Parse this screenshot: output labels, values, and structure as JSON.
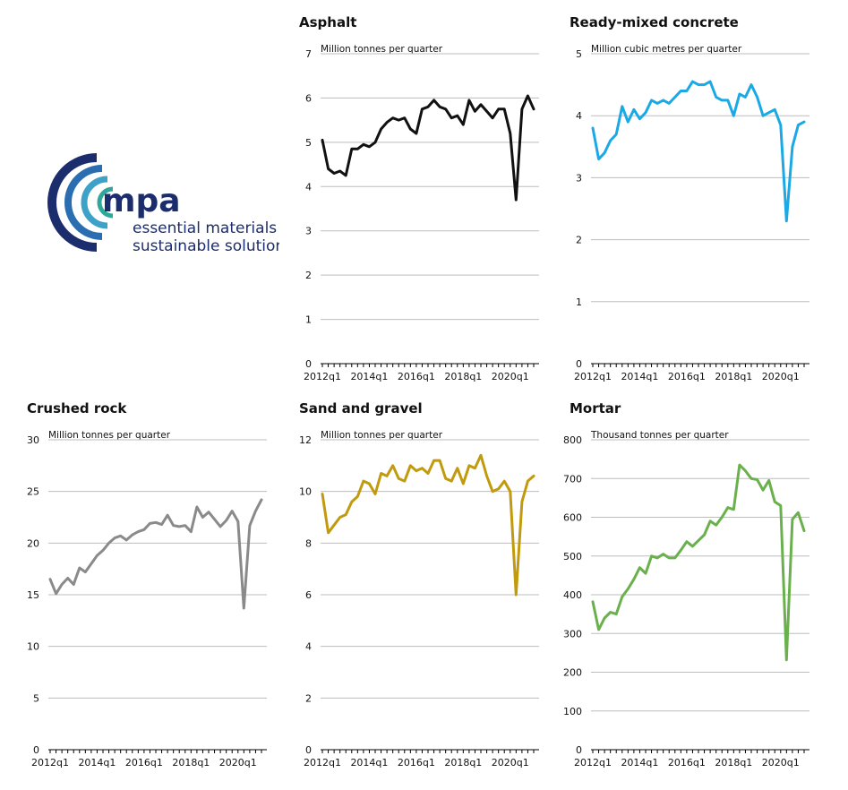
{
  "logo": {
    "brand": "mpa",
    "line1": "essential materials",
    "line2": "sustainable solutions",
    "colors": [
      "#1c2d6e",
      "#2a6db0",
      "#3ea2c8",
      "#2fa79a"
    ]
  },
  "chart_data": [
    {
      "type": "line",
      "title": "Asphalt",
      "ylabel": "Million tonnes per quarter",
      "ylim": [
        0,
        7
      ],
      "yticks": [
        0,
        1,
        2,
        3,
        4,
        5,
        6,
        7
      ],
      "xtick_labels": [
        "2012q1",
        "2014q1",
        "2016q1",
        "2018q1",
        "2020q1"
      ],
      "color": "#111111",
      "series": [
        {
          "values": [
            5.05,
            4.4,
            4.3,
            4.35,
            4.25,
            4.85,
            4.85,
            4.95,
            4.9,
            5.0,
            5.3,
            5.45,
            5.55,
            5.5,
            5.55,
            5.3,
            5.2,
            5.75,
            5.8,
            5.95,
            5.8,
            5.75,
            5.55,
            5.6,
            5.4,
            5.95,
            5.7,
            5.85,
            5.7,
            5.55,
            5.75,
            5.75,
            5.2,
            3.7,
            5.75,
            6.05,
            5.75
          ]
        }
      ]
    },
    {
      "type": "line",
      "title": "Ready-mixed concrete",
      "ylabel": "Million cubic metres per quarter",
      "ylim": [
        0,
        5
      ],
      "yticks": [
        0,
        1,
        2,
        3,
        4,
        5
      ],
      "xtick_labels": [
        "2012q1",
        "2014q1",
        "2016q1",
        "2018q1",
        "2020q1"
      ],
      "color": "#1ba9e6",
      "series": [
        {
          "values": [
            3.8,
            3.3,
            3.4,
            3.6,
            3.7,
            4.15,
            3.9,
            4.1,
            3.95,
            4.05,
            4.25,
            4.2,
            4.25,
            4.2,
            4.3,
            4.4,
            4.4,
            4.55,
            4.5,
            4.5,
            4.55,
            4.3,
            4.25,
            4.25,
            4.0,
            4.35,
            4.3,
            4.5,
            4.3,
            4.0,
            4.05,
            4.1,
            3.85,
            2.3,
            3.5,
            3.85,
            3.9
          ]
        }
      ]
    },
    {
      "type": "line",
      "title": "Crushed rock",
      "ylabel": "Million tonnes per quarter",
      "ylim": [
        0,
        30
      ],
      "yticks": [
        0,
        5,
        10,
        15,
        20,
        25,
        30
      ],
      "xtick_labels": [
        "2012q1",
        "2014q1",
        "2016q1",
        "2018q1",
        "2020q1"
      ],
      "color": "#8a8a8a",
      "series": [
        {
          "values": [
            16.5,
            15.1,
            16.0,
            16.6,
            16.0,
            17.6,
            17.2,
            18.0,
            18.8,
            19.3,
            20.0,
            20.5,
            20.7,
            20.3,
            20.8,
            21.1,
            21.3,
            21.9,
            22.0,
            21.8,
            22.7,
            21.7,
            21.6,
            21.7,
            21.1,
            23.5,
            22.5,
            23.0,
            22.3,
            21.6,
            22.2,
            23.1,
            22.1,
            13.7,
            21.7,
            23.1,
            24.2
          ]
        }
      ]
    },
    {
      "type": "line",
      "title": "Sand and gravel",
      "ylabel": "Million tonnes per quarter",
      "ylim": [
        0,
        12
      ],
      "yticks": [
        0,
        2,
        4,
        6,
        8,
        10,
        12
      ],
      "xtick_labels": [
        "2012q1",
        "2014q1",
        "2016q1",
        "2018q1",
        "2020q1"
      ],
      "color": "#c29a0e",
      "series": [
        {
          "values": [
            9.9,
            8.4,
            8.7,
            9.0,
            9.1,
            9.6,
            9.8,
            10.4,
            10.3,
            9.9,
            10.7,
            10.6,
            11.0,
            10.5,
            10.4,
            11.0,
            10.8,
            10.9,
            10.7,
            11.2,
            11.2,
            10.5,
            10.4,
            10.9,
            10.3,
            11.0,
            10.9,
            11.4,
            10.6,
            10.0,
            10.1,
            10.4,
            10.0,
            6.0,
            9.6,
            10.4,
            10.6
          ]
        }
      ]
    },
    {
      "type": "line",
      "title": "Mortar",
      "ylabel": "Thousand tonnes per quarter",
      "ylim": [
        0,
        800
      ],
      "yticks": [
        0,
        100,
        200,
        300,
        400,
        500,
        600,
        700,
        800
      ],
      "xtick_labels": [
        "2012q1",
        "2014q1",
        "2016q1",
        "2018q1",
        "2020q1"
      ],
      "color": "#6ab04c",
      "series": [
        {
          "values": [
            382,
            310,
            340,
            355,
            350,
            395,
            415,
            440,
            470,
            455,
            500,
            495,
            505,
            495,
            495,
            515,
            537,
            525,
            540,
            555,
            590,
            580,
            600,
            625,
            620,
            735,
            720,
            700,
            697,
            670,
            695,
            640,
            630,
            232,
            595,
            612,
            565
          ]
        }
      ]
    }
  ]
}
